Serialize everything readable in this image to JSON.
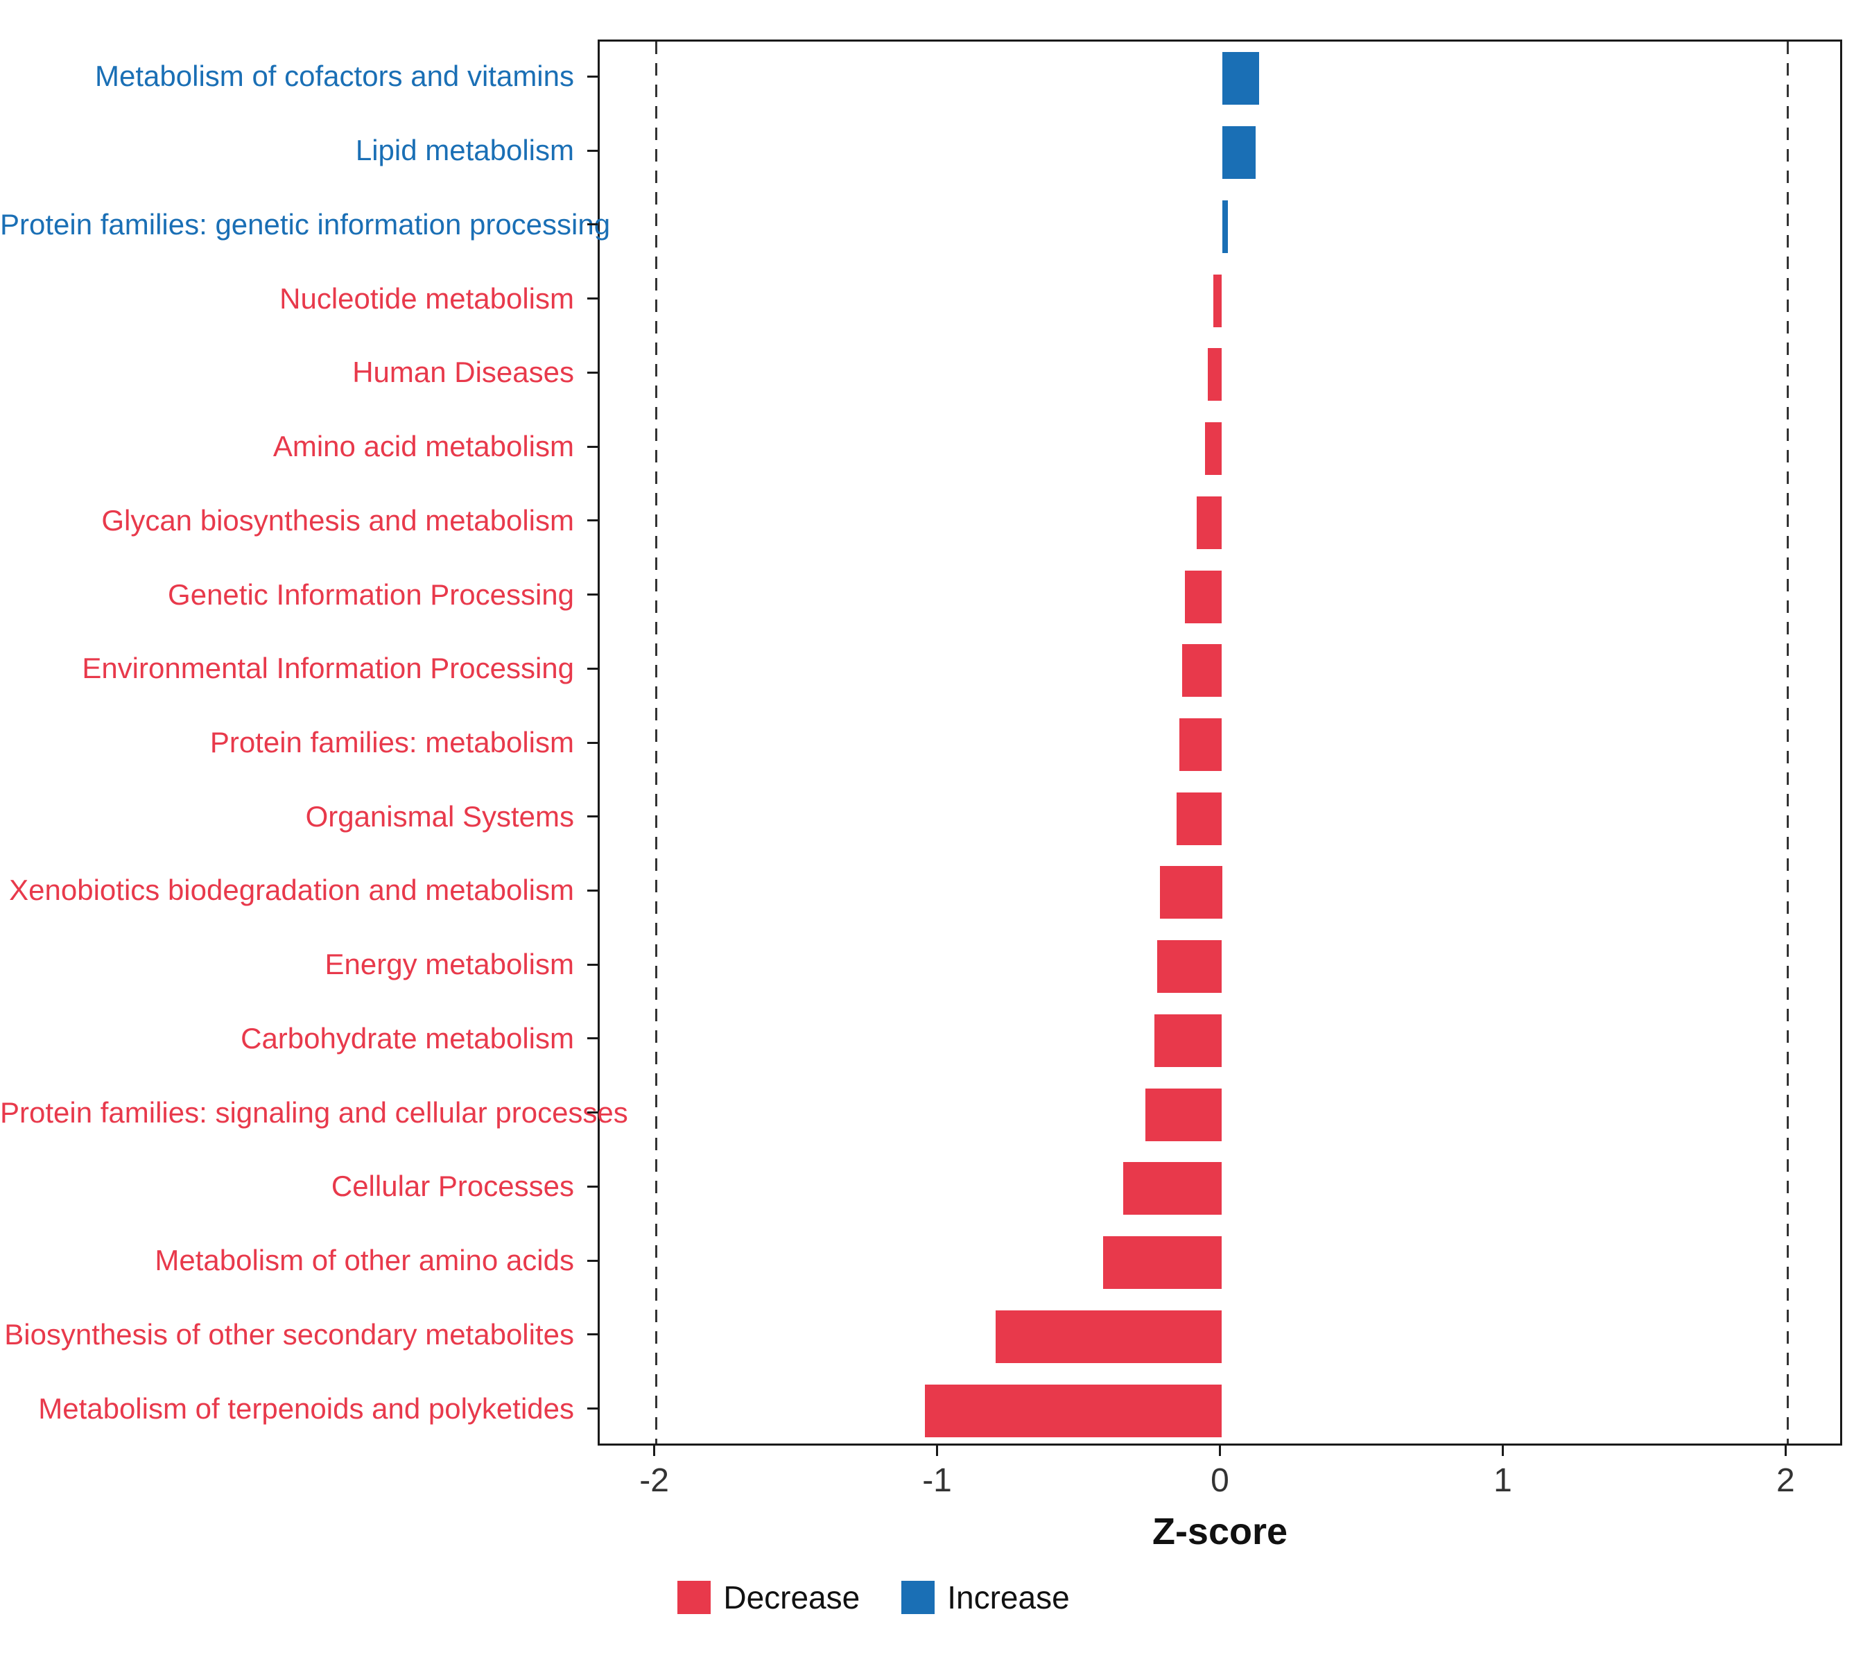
{
  "chart_data": {
    "type": "bar",
    "orientation": "horizontal",
    "xlabel": "Z-score",
    "xlim": [
      -2.2,
      2.2
    ],
    "xticks": [
      -2,
      -1,
      0,
      1,
      2
    ],
    "reference_lines": [
      -2,
      2
    ],
    "grid": false,
    "legend_position": "bottom",
    "categories": [
      "Metabolism of cofactors and vitamins",
      "Lipid metabolism",
      "Protein families: genetic information processing",
      "Nucleotide metabolism",
      "Human Diseases",
      "Amino acid metabolism",
      "Glycan biosynthesis and metabolism",
      "Genetic Information Processing",
      "Environmental Information Processing",
      "Protein families: metabolism",
      "Organismal Systems",
      "Xenobiotics biodegradation and metabolism",
      "Energy metabolism",
      "Carbohydrate metabolism",
      "Protein families: signaling and cellular processes",
      "Cellular Processes",
      "Metabolism of other amino acids",
      "Biosynthesis of other secondary metabolites",
      "Metabolism of terpenoids and polyketides"
    ],
    "values": [
      0.13,
      0.12,
      0.02,
      -0.03,
      -0.05,
      -0.06,
      -0.09,
      -0.13,
      -0.14,
      -0.15,
      -0.16,
      -0.22,
      -0.23,
      -0.24,
      -0.27,
      -0.35,
      -0.42,
      -0.8,
      -1.05
    ],
    "groups": [
      "Increase",
      "Increase",
      "Increase",
      "Decrease",
      "Decrease",
      "Decrease",
      "Decrease",
      "Decrease",
      "Decrease",
      "Decrease",
      "Decrease",
      "Decrease",
      "Decrease",
      "Decrease",
      "Decrease",
      "Decrease",
      "Decrease",
      "Decrease",
      "Decrease"
    ],
    "colors": {
      "Decrease": "#E8394B",
      "Increase": "#1A6FB5"
    },
    "legend": [
      {
        "label": "Decrease",
        "color": "#E8394B"
      },
      {
        "label": "Increase",
        "color": "#1A6FB5"
      }
    ]
  }
}
